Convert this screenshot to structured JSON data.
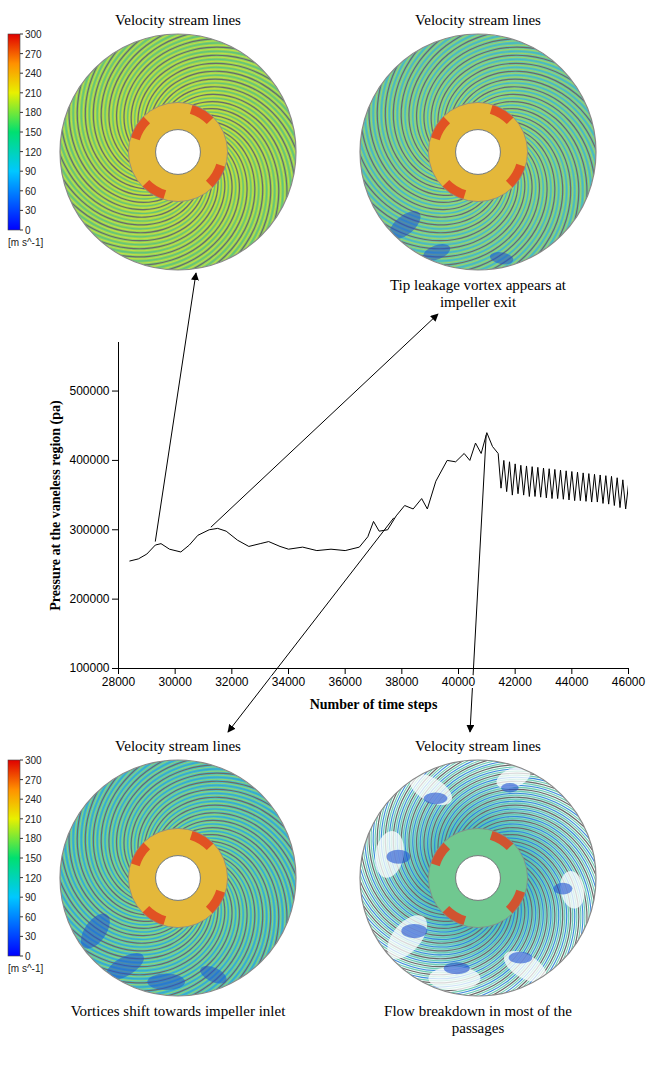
{
  "panels": [
    {
      "title": "Velocity stream lines",
      "time_step": 29300,
      "pressure": 278000
    },
    {
      "title": "Velocity stream lines",
      "caption": "Tip leakage vortex appears at impeller exit",
      "time_step": 31200,
      "pressure": 300000
    },
    {
      "title": "Velocity stream lines",
      "caption": "Vortices shift towards impeller inlet",
      "time_step": 37800,
      "pressure": 320000
    },
    {
      "title": "Velocity stream lines",
      "caption": "Flow breakdown in most of the passages",
      "time_step": 41000,
      "pressure": 440000
    }
  ],
  "colorbar": {
    "range": [
      0,
      300
    ],
    "ticks": [
      0,
      30,
      60,
      90,
      120,
      150,
      180,
      210,
      240,
      270,
      300
    ],
    "unit": "[m s^-1]"
  },
  "chart_data": {
    "type": "line",
    "xlabel": "Number of time steps",
    "ylabel": "Pressure at the vaneless region (pa)",
    "xlim": [
      28000,
      46000
    ],
    "xticks": [
      28000,
      30000,
      32000,
      34000,
      36000,
      38000,
      40000,
      42000,
      44000,
      46000
    ],
    "ylim": [
      100000,
      570000
    ],
    "yticks": [
      100000,
      200000,
      300000,
      400000,
      500000
    ],
    "grid": false,
    "color": "#000000",
    "x": [
      28400,
      28700,
      29000,
      29300,
      29500,
      29800,
      30200,
      30500,
      30800,
      31200,
      31500,
      31800,
      32200,
      32600,
      33000,
      33300,
      33700,
      34000,
      34500,
      35000,
      35500,
      36000,
      36500,
      36800,
      37000,
      37200,
      37500,
      37800,
      38100,
      38400,
      38700,
      38900,
      39200,
      39600,
      39900,
      40200,
      40400,
      40600,
      40800,
      41000,
      41200,
      41400,
      41500,
      41600,
      41700,
      41800,
      41900,
      42000,
      42100,
      42200,
      42300,
      42400,
      42500,
      42600,
      42700,
      42800,
      42900,
      43000,
      43100,
      43200,
      43300,
      43400,
      43500,
      43600,
      43700,
      43800,
      43900,
      44000,
      44100,
      44200,
      44300,
      44400,
      44500,
      44600,
      44700,
      44800,
      44900,
      45000,
      45100,
      45200,
      45300,
      45400,
      45500,
      45600,
      45700,
      45800,
      45900,
      46000
    ],
    "values": [
      255000,
      258000,
      265000,
      278000,
      280000,
      272000,
      268000,
      278000,
      292000,
      300000,
      302000,
      298000,
      285000,
      276000,
      280000,
      283000,
      276000,
      272000,
      275000,
      270000,
      272000,
      270000,
      275000,
      290000,
      312000,
      298000,
      300000,
      320000,
      335000,
      330000,
      345000,
      330000,
      370000,
      400000,
      398000,
      410000,
      400000,
      425000,
      410000,
      440000,
      420000,
      410000,
      360000,
      400000,
      355000,
      398000,
      350000,
      395000,
      352000,
      393000,
      350000,
      392000,
      348000,
      391000,
      348000,
      390000,
      347000,
      389000,
      346000,
      388000,
      345000,
      387000,
      345000,
      386000,
      344000,
      385000,
      343000,
      384000,
      342000,
      383000,
      342000,
      382000,
      341000,
      381000,
      340000,
      380000,
      340000,
      379000,
      338000,
      378000,
      337000,
      377000,
      335000,
      375000,
      332000,
      372000,
      330000,
      365000
    ]
  }
}
